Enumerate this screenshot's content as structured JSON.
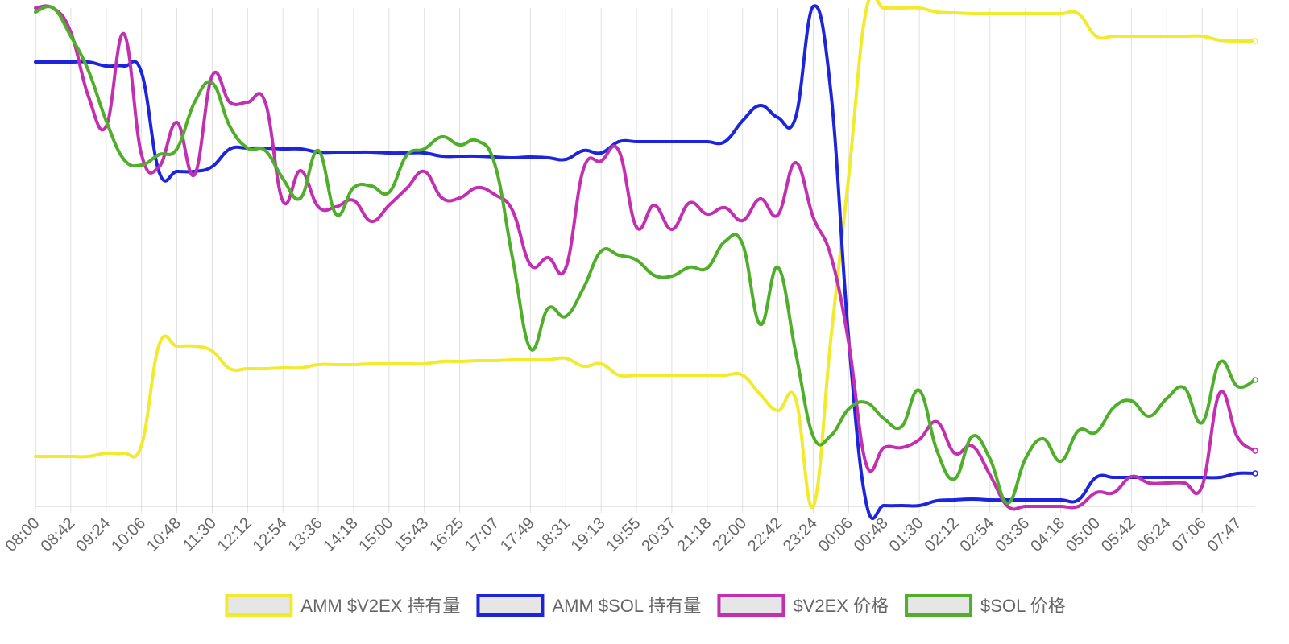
{
  "chart_data": {
    "type": "line",
    "categories": [
      "08:00",
      null,
      "08:42",
      null,
      "09:24",
      null,
      "10:06",
      null,
      "10:48",
      null,
      "11:30",
      null,
      "12:12",
      null,
      "12:54",
      null,
      "13:36",
      null,
      "14:18",
      null,
      "15:00",
      null,
      "15:43",
      null,
      "16:25",
      null,
      "17:07",
      null,
      "17:49",
      null,
      "18:31",
      null,
      "19:13",
      null,
      "19:55",
      null,
      "20:37",
      null,
      "21:18",
      null,
      "22:00",
      null,
      "22:42",
      null,
      "23:24",
      null,
      "00:06",
      null,
      "00:48",
      null,
      "01:30",
      null,
      "02:12",
      null,
      "02:54",
      null,
      "03:36",
      null,
      "04:18",
      null,
      "05:00",
      null,
      "05:42",
      null,
      "06:24",
      null,
      "07:06",
      null,
      "07:47",
      null
    ],
    "ylim": [
      0,
      619
    ],
    "grid": true,
    "legend": "bottom",
    "series": [
      {
        "name": "AMM $V2EX 持有量",
        "color": "#f2ea2c",
        "values": [
          62,
          62,
          62,
          62,
          66,
          66,
          76,
          201,
          199,
          199,
          193,
          171,
          171,
          171,
          172,
          172,
          176,
          176,
          176,
          177,
          177,
          177,
          177,
          180,
          180,
          181,
          181,
          182,
          182,
          182,
          184,
          174,
          177,
          163,
          163,
          163,
          163,
          163,
          163,
          163,
          163,
          139,
          119,
          134,
          0,
          209,
          409,
          617,
          619,
          619,
          619,
          614,
          613,
          612,
          612,
          612,
          612,
          612,
          612,
          612,
          584,
          584,
          584,
          584,
          584,
          584,
          584,
          579,
          578,
          578
        ]
      },
      {
        "name": "AMM $SOL 持有量",
        "color": "#1c24dc",
        "values": [
          552,
          552,
          552,
          552,
          547,
          547,
          539,
          415,
          416,
          416,
          422,
          444,
          445,
          445,
          444,
          444,
          440,
          440,
          440,
          440,
          439,
          439,
          439,
          435,
          435,
          435,
          434,
          433,
          434,
          433,
          431,
          442,
          439,
          453,
          453,
          453,
          453,
          453,
          453,
          453,
          479,
          498,
          483,
          483,
          621,
          514,
          209,
          4,
          1,
          1,
          1,
          7,
          8,
          9,
          8,
          8,
          8,
          8,
          8,
          8,
          36,
          36,
          36,
          36,
          36,
          36,
          36,
          36,
          41,
          41
        ]
      },
      {
        "name": "$V2EX 价格",
        "color": "#c22fb0",
        "values": [
          619,
          619,
          589,
          509,
          472,
          587,
          437,
          422,
          477,
          412,
          535,
          502,
          502,
          502,
          379,
          417,
          372,
          372,
          380,
          354,
          374,
          395,
          416,
          383,
          383,
          396,
          387,
          367,
          300,
          309,
          296,
          419,
          429,
          442,
          347,
          374,
          344,
          377,
          363,
          371,
          355,
          382,
          362,
          427,
          359,
          311,
          204,
          52,
          73,
          73,
          83,
          105,
          66,
          75,
          39,
          0,
          0,
          0,
          0,
          0,
          17,
          17,
          37,
          29,
          29,
          29,
          25,
          141,
          86,
          69
        ]
      },
      {
        "name": "$SOL 价格",
        "color": "#4fae2a",
        "values": [
          614,
          619,
          584,
          541,
          479,
          431,
          424,
          437,
          444,
          502,
          526,
          472,
          445,
          442,
          407,
          383,
          442,
          363,
          396,
          398,
          390,
          436,
          444,
          459,
          449,
          454,
          424,
          307,
          196,
          246,
          236,
          271,
          317,
          312,
          306,
          287,
          286,
          297,
          296,
          329,
          326,
          226,
          297,
          192,
          87,
          88,
          121,
          129,
          109,
          99,
          144,
          69,
          34,
          87,
          59,
          4,
          59,
          84,
          56,
          94,
          92,
          123,
          131,
          112,
          134,
          147,
          104,
          179,
          149,
          157
        ]
      }
    ]
  }
}
